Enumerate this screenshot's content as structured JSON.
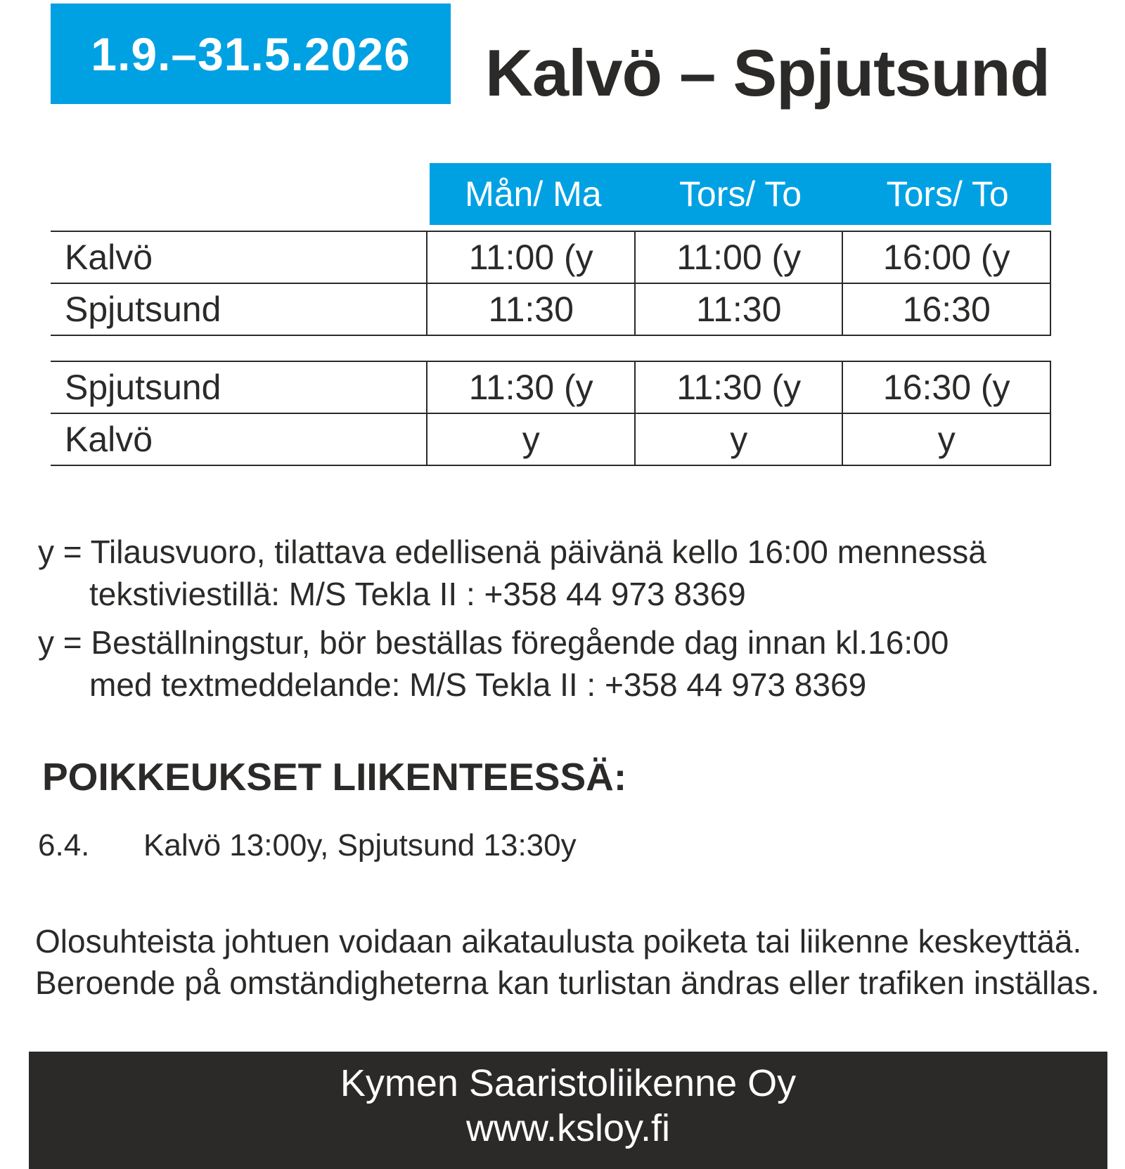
{
  "header": {
    "period": "1.9.–31.5.2026",
    "route": "Kalvö – Spjutsund"
  },
  "columns": [
    "Mån/ Ma",
    "Tors/ To",
    "Tors/ To"
  ],
  "table1": [
    {
      "stop": "Kalvö",
      "times": [
        "11:00 (y",
        "11:00 (y",
        "16:00 (y"
      ]
    },
    {
      "stop": "Spjutsund",
      "times": [
        "11:30",
        "11:30",
        "16:30"
      ]
    }
  ],
  "table2": [
    {
      "stop": "Spjutsund",
      "times": [
        "11:30 (y",
        "11:30 (y",
        "16:30 (y"
      ]
    },
    {
      "stop": "Kalvö",
      "times": [
        "y",
        "y",
        "y"
      ]
    }
  ],
  "legend": {
    "fi": [
      "y = Tilausvuoro, tilattava edellisenä päivänä kello 16:00 mennessä",
      "tekstiviestillä: M/S Tekla II : +358 44 973 8369"
    ],
    "sv": [
      "y = Beställningstur, bör beställas föregående dag innan kl.16:00",
      "med textmeddelande: M/S Tekla II : +358 44 973 8369"
    ]
  },
  "exceptions": {
    "heading": "POIKKEUKSET LIIKENTEESSÄ:",
    "items": [
      {
        "date": "6.4.",
        "text": "Kalvö 13:00y, Spjutsund 13:30y"
      }
    ]
  },
  "note": "Olosuhteista johtuen voidaan aikataulusta poiketa tai liikenne keskeyttää. Beroende på omständigheterna kan turlistan ändras eller trafiken inställas.",
  "footer": {
    "company": "Kymen Saaristoliikenne Oy",
    "url": "www.ksloy.fi"
  },
  "colors": {
    "accent": "#00a1e2",
    "text": "#2b2a29",
    "footer_bg": "#2b2a29"
  }
}
